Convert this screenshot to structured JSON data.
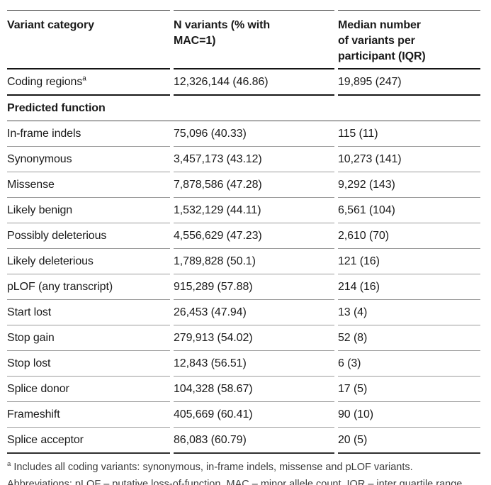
{
  "table": {
    "columns": [
      {
        "label": "Variant category"
      },
      {
        "label": "N variants (% with\nMAC=1)"
      },
      {
        "label": "Median number\nof variants per\nparticipant (IQR)"
      }
    ],
    "rows": [
      {
        "category": "Coding regions",
        "category_sup": "a",
        "n_variants": "12,326,144 (46.86)",
        "median": "19,895 (247)"
      },
      {
        "category": "Predicted function",
        "section": true
      },
      {
        "category": "In-frame indels",
        "n_variants": "75,096 (40.33)",
        "median": "115 (11)"
      },
      {
        "category": "Synonymous",
        "n_variants": "3,457,173 (43.12)",
        "median": "10,273 (141)"
      },
      {
        "category": "Missense",
        "n_variants": "7,878,586 (47.28)",
        "median": "9,292 (143)"
      },
      {
        "category": "Likely benign",
        "n_variants": "1,532,129 (44.11)",
        "median": "6,561 (104)"
      },
      {
        "category": "Possibly deleterious",
        "n_variants": "4,556,629 (47.23)",
        "median": "2,610 (70)"
      },
      {
        "category": "Likely deleterious",
        "n_variants": "1,789,828 (50.1)",
        "median": "121 (16)"
      },
      {
        "category": "pLOF (any transcript)",
        "n_variants": "915,289 (57.88)",
        "median": "214 (16)"
      },
      {
        "category": "Start lost",
        "n_variants": "26,453 (47.94)",
        "median": "13 (4)"
      },
      {
        "category": "Stop gain",
        "n_variants": "279,913 (54.02)",
        "median": "52 (8)"
      },
      {
        "category": "Stop lost",
        "n_variants": "12,843 (56.51)",
        "median": "6 (3)"
      },
      {
        "category": "Splice donor",
        "n_variants": "104,328 (58.67)",
        "median": "17 (5)"
      },
      {
        "category": "Frameshift",
        "n_variants": "405,669 (60.41)",
        "median": "90 (10)"
      },
      {
        "category": "Splice acceptor",
        "n_variants": "86,083 (60.79)",
        "median": "20 (5)"
      }
    ]
  },
  "footnote": {
    "marker": "a",
    "text": " Includes all coding variants: synonymous, in-frame indels, missense and pLOF variants.\nAbbreviations: pLOF – putative loss-of-function. MAC – minor allele count. IQR – inter quartile range."
  },
  "colors": {
    "text": "#1a1a1a",
    "rule_dark": "#161616",
    "rule_medium": "#4b4b4b",
    "rule_light": "#9a9a9a",
    "footnote_text": "#3d3d3d",
    "background": "#ffffff"
  }
}
